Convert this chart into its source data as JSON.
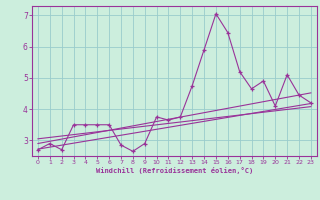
{
  "xlabel": "Windchill (Refroidissement éolien,°C)",
  "bg_color": "#cceedd",
  "line_color": "#993399",
  "grid_color": "#99cccc",
  "xlim": [
    -0.5,
    23.5
  ],
  "ylim": [
    2.5,
    7.3
  ],
  "yticks": [
    3,
    4,
    5,
    6,
    7
  ],
  "xticks": [
    0,
    1,
    2,
    3,
    4,
    5,
    6,
    7,
    8,
    9,
    10,
    11,
    12,
    13,
    14,
    15,
    16,
    17,
    18,
    19,
    20,
    21,
    22,
    23
  ],
  "series1_x": [
    0,
    1,
    2,
    3,
    4,
    5,
    6,
    7,
    8,
    9,
    10,
    11,
    12,
    13,
    14,
    15,
    16,
    17,
    18,
    19,
    20,
    21,
    22,
    23
  ],
  "series1_y": [
    2.7,
    2.9,
    2.7,
    3.5,
    3.5,
    3.5,
    3.5,
    2.85,
    2.65,
    2.9,
    3.75,
    3.65,
    3.75,
    4.75,
    5.9,
    7.05,
    6.45,
    5.2,
    4.65,
    4.9,
    4.1,
    5.1,
    4.45,
    4.2
  ],
  "trend1_x": [
    0,
    23
  ],
  "trend1_y": [
    2.72,
    4.18
  ],
  "trend2_x": [
    0,
    23
  ],
  "trend2_y": [
    2.9,
    4.52
  ],
  "trend3_x": [
    0,
    23
  ],
  "trend3_y": [
    3.05,
    4.08
  ]
}
